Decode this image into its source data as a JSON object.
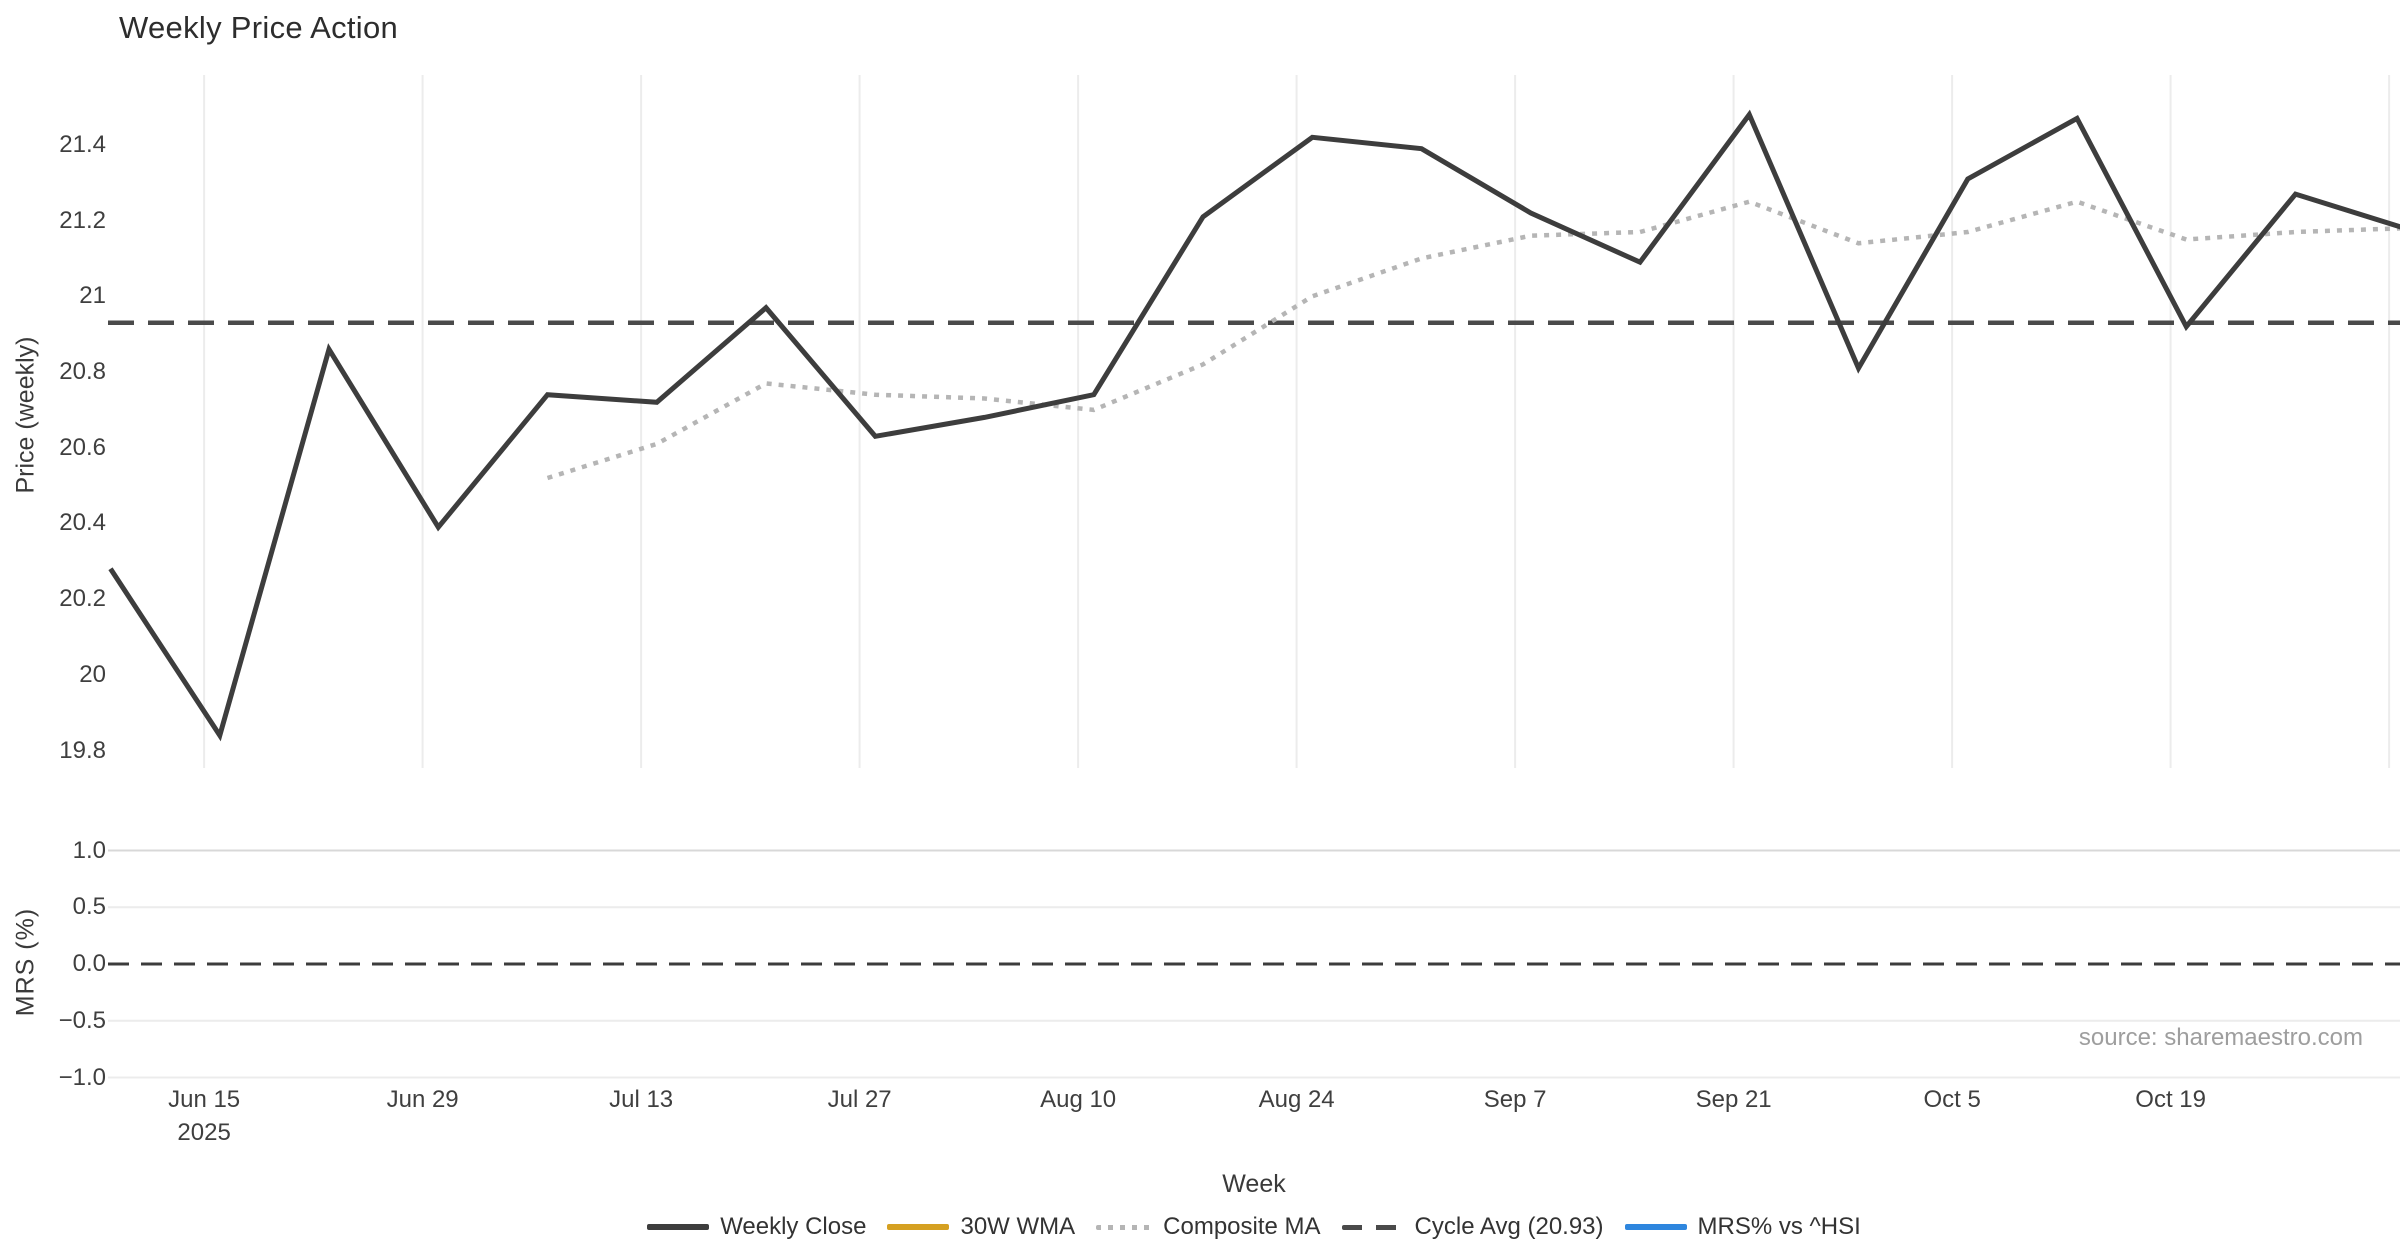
{
  "title": "Weekly Price Action",
  "source": "source: sharemaestro.com",
  "colors": {
    "close": "#3d3d3d",
    "wma": "#d5a021",
    "composite": "#b5b5b5",
    "cycle": "#4a4a4a",
    "mrs": "#2e86de",
    "zero_line": "#3c3c3c",
    "grid": "#ececec",
    "grid_strong": "#d8d8d8",
    "tick_text": "#3f3f3f",
    "title_text": "#2d2d2d",
    "source_text": "#9e9e9e"
  },
  "chart_data": {
    "type": "line",
    "title": "Weekly Price Action",
    "xlabel": "Week",
    "n_weeks": 22,
    "x_ticks": [
      {
        "label": "Jun 15",
        "sublabel": "2025",
        "week_pos": 0.857
      },
      {
        "label": "Jun 29",
        "week_pos": 2.857
      },
      {
        "label": "Jul 13",
        "week_pos": 4.857
      },
      {
        "label": "Jul 27",
        "week_pos": 6.857
      },
      {
        "label": "Aug 10",
        "week_pos": 8.857
      },
      {
        "label": "Aug 24",
        "week_pos": 10.857
      },
      {
        "label": "Sep 7",
        "week_pos": 12.857
      },
      {
        "label": "Sep 21",
        "week_pos": 14.857
      },
      {
        "label": "Oct 5",
        "week_pos": 16.857
      },
      {
        "label": "Oct 19",
        "week_pos": 18.857
      },
      {
        "label": "",
        "week_pos": 20.857
      }
    ],
    "panels": [
      {
        "ylabel": "Price (weekly)",
        "yticks": [
          "21.4",
          "21.2",
          "21",
          "20.8",
          "20.6",
          "20.4",
          "20.2",
          "20",
          "19.8"
        ],
        "ytick_values": [
          21.4,
          21.2,
          21.0,
          20.8,
          20.6,
          20.4,
          20.2,
          20.0,
          19.8
        ],
        "ylim": [
          19.75,
          21.6
        ],
        "grid": "x-only",
        "reference": {
          "name": "Cycle Avg",
          "value": 20.93,
          "style": "dashed"
        },
        "series": [
          {
            "name": "Weekly Close",
            "style": "solid",
            "color": "#3d3d3d",
            "values": [
              20.28,
              19.84,
              20.86,
              20.39,
              20.74,
              20.72,
              20.97,
              20.63,
              20.68,
              20.74,
              21.21,
              21.42,
              21.39,
              21.22,
              21.09,
              21.48,
              20.81,
              21.31,
              21.47,
              20.92,
              21.27,
              21.18
            ]
          },
          {
            "name": "30W WMA",
            "style": "solid",
            "color": "#d5a021",
            "values": []
          },
          {
            "name": "Composite MA",
            "style": "dotted",
            "color": "#b5b5b5",
            "values": [
              null,
              null,
              null,
              null,
              20.52,
              20.61,
              20.77,
              20.74,
              20.73,
              20.7,
              20.82,
              21.0,
              21.1,
              21.16,
              21.17,
              21.25,
              21.14,
              21.17,
              21.25,
              21.15,
              21.17,
              21.18
            ]
          }
        ]
      },
      {
        "ylabel": "MRS (%)",
        "yticks": [
          "1.0",
          "0.5",
          "0.0",
          "−0.5",
          "−1.0"
        ],
        "ytick_values": [
          1.0,
          0.5,
          0.0,
          -0.5,
          -1.0
        ],
        "ylim": [
          -1.05,
          1.05
        ],
        "grid": "y-only",
        "reference": {
          "name": "Zero",
          "value": 0,
          "style": "dashed"
        },
        "series": [
          {
            "name": "MRS% vs ^HSI",
            "style": "solid",
            "color": "#2e86de",
            "values": []
          }
        ]
      }
    ],
    "legend": [
      {
        "label": "Weekly Close",
        "swatch": "solid",
        "color": "#3d3d3d"
      },
      {
        "label": "30W WMA",
        "swatch": "solid",
        "color": "#d5a021"
      },
      {
        "label": "Composite MA",
        "swatch": "dotted",
        "color": "#b5b5b5"
      },
      {
        "label": "Cycle Avg (20.93)",
        "swatch": "dashed",
        "color": "#4a4a4a"
      },
      {
        "label": "MRS% vs ^HSI",
        "swatch": "solid",
        "color": "#2e86de"
      }
    ]
  }
}
